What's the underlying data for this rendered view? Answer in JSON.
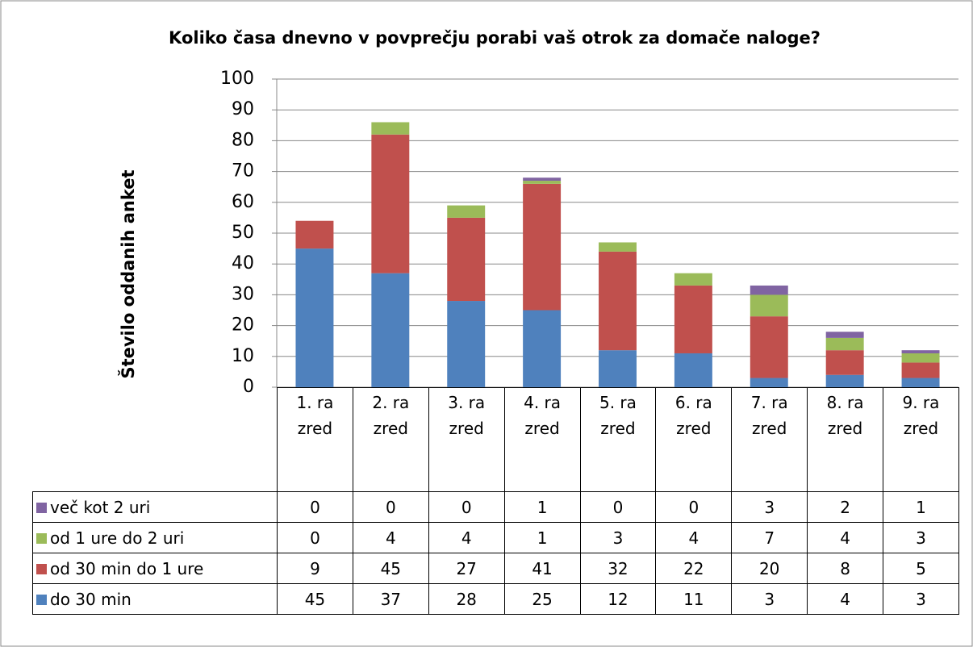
{
  "chart_data": {
    "type": "bar",
    "stacked": true,
    "title": "Koliko časa dnevno v povprečju porabi vaš otrok za domače naloge?",
    "y_label": "Število oddanih anket",
    "categories": [
      "1. razred",
      "2. razred",
      "3. razred",
      "4. razred",
      "5. razred",
      "6. razred",
      "7. razred",
      "8. razred",
      "9. razred"
    ],
    "series": [
      {
        "name": "do 30 min",
        "color": "#4f81bd",
        "values": [
          45,
          37,
          28,
          25,
          12,
          11,
          3,
          4,
          3
        ]
      },
      {
        "name": "od 30 min do 1 ure",
        "color": "#c0504d",
        "values": [
          9,
          45,
          27,
          41,
          32,
          22,
          20,
          8,
          5
        ]
      },
      {
        "name": "od 1 ure do 2 uri",
        "color": "#9bbb59",
        "values": [
          0,
          4,
          4,
          1,
          3,
          4,
          7,
          4,
          3
        ]
      },
      {
        "name": "več kot 2 uri",
        "color": "#8064a2",
        "values": [
          0,
          0,
          0,
          1,
          0,
          0,
          3,
          2,
          1
        ]
      }
    ],
    "ylim": [
      0,
      100
    ],
    "yticks": [
      0,
      10,
      20,
      30,
      40,
      50,
      60,
      70,
      80,
      90,
      100
    ],
    "grid": true
  }
}
